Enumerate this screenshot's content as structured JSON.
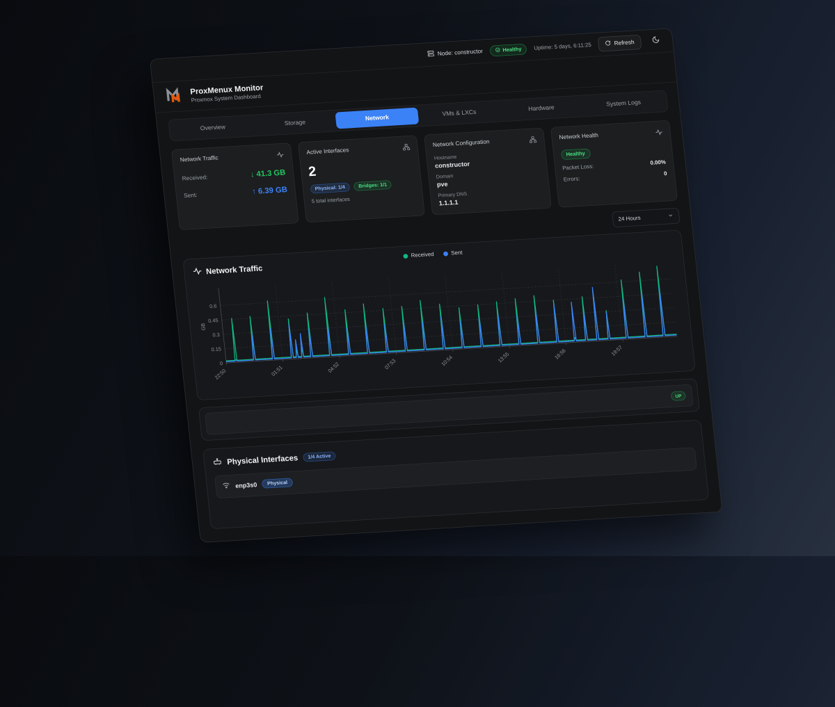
{
  "colors": {
    "accent": "#3b82f6",
    "green": "#22c55e",
    "received": "#10b981",
    "sent": "#3b82f6"
  },
  "topbar": {
    "node": "Node: constructor",
    "health": "Healthy",
    "uptime": "Uptime: 5 days, 6:11:25",
    "refresh": "Refresh"
  },
  "header": {
    "title": "ProxMenux Monitor",
    "subtitle": "Proxmox System Dashboard"
  },
  "tabs": {
    "active": "Network",
    "items": [
      {
        "label": "Overview"
      },
      {
        "label": "Storage"
      },
      {
        "label": "Network"
      },
      {
        "label": "VMs & LXCs"
      },
      {
        "label": "Hardware"
      },
      {
        "label": "System Logs"
      }
    ]
  },
  "cards": {
    "traffic": {
      "title": "Network Traffic",
      "received_label": "Received:",
      "received_arrow": "↓",
      "received_value": "41.3 GB",
      "sent_label": "Sent:",
      "sent_arrow": "↑",
      "sent_value": "6.39 GB"
    },
    "interfaces": {
      "title": "Active Interfaces",
      "count": "2",
      "physical_badge": "Physical: 1/4",
      "bridges_badge": "Bridges: 1/1",
      "note": "5 total interfaces"
    },
    "config": {
      "title": "Network Configuration",
      "hostname_label": "Hostname",
      "hostname": "constructor",
      "domain_label": "Domain",
      "domain": "pve",
      "dns_label": "Primary DNS",
      "dns": "1.1.1.1"
    },
    "health": {
      "title": "Network Health",
      "status": "Healthy",
      "packet_loss_label": "Packet Loss:",
      "packet_loss": "0.00%",
      "errors_label": "Errors:",
      "errors": "0"
    }
  },
  "time_range": {
    "selected": "24 Hours"
  },
  "chart_card": {
    "title": "Network Traffic"
  },
  "chart_data": {
    "type": "line",
    "title": "Network Traffic",
    "xlabel": "",
    "ylabel": "GB",
    "ylim": [
      0,
      0.78
    ],
    "yticks": [
      0,
      0.15,
      0.3,
      0.45,
      0.6
    ],
    "xticks": [
      "22:50",
      "01:51",
      "04:52",
      "07:53",
      "10:54",
      "13:55",
      "16:56",
      "19:57"
    ],
    "xtick_step": 0.1257,
    "grid": true,
    "legend_position": "top-center",
    "series": [
      {
        "name": "Received",
        "color": "#10b981",
        "baseline": 0.022
      },
      {
        "name": "Sent",
        "color": "#3b82f6",
        "baseline": 0.013
      }
    ],
    "spikes": [
      [
        0.022,
        0.46,
        0.03
      ],
      [
        0.063,
        0.47,
        0.29
      ],
      [
        0.105,
        0.62,
        0.33
      ],
      [
        0.147,
        0.42,
        0.36
      ],
      [
        0.158,
        0.1,
        0.2
      ],
      [
        0.17,
        0.12,
        0.26
      ],
      [
        0.19,
        0.47,
        0.3
      ],
      [
        0.232,
        0.62,
        0.31
      ],
      [
        0.274,
        0.48,
        0.29
      ],
      [
        0.316,
        0.53,
        0.31
      ],
      [
        0.358,
        0.47,
        0.3
      ],
      [
        0.4,
        0.48,
        0.32
      ],
      [
        0.442,
        0.53,
        0.31
      ],
      [
        0.484,
        0.48,
        0.35
      ],
      [
        0.526,
        0.43,
        0.29
      ],
      [
        0.568,
        0.45,
        0.31
      ],
      [
        0.61,
        0.47,
        0.34
      ],
      [
        0.652,
        0.49,
        0.31
      ],
      [
        0.694,
        0.51,
        0.36
      ],
      [
        0.736,
        0.45,
        0.41
      ],
      [
        0.775,
        0.05,
        0.42
      ],
      [
        0.8,
        0.47,
        0.31
      ],
      [
        0.825,
        0.53,
        0.56
      ],
      [
        0.85,
        0.31,
        0.29
      ],
      [
        0.89,
        0.62,
        0.42
      ],
      [
        0.932,
        0.69,
        0.47
      ],
      [
        0.972,
        0.74,
        0.52
      ]
    ]
  },
  "status_row": {
    "badge": "UP"
  },
  "physical": {
    "title": "Physical Interfaces",
    "active_badge": "1/4 Active",
    "rows": [
      {
        "name": "enp3s0",
        "type_badge": "Physical"
      }
    ]
  }
}
